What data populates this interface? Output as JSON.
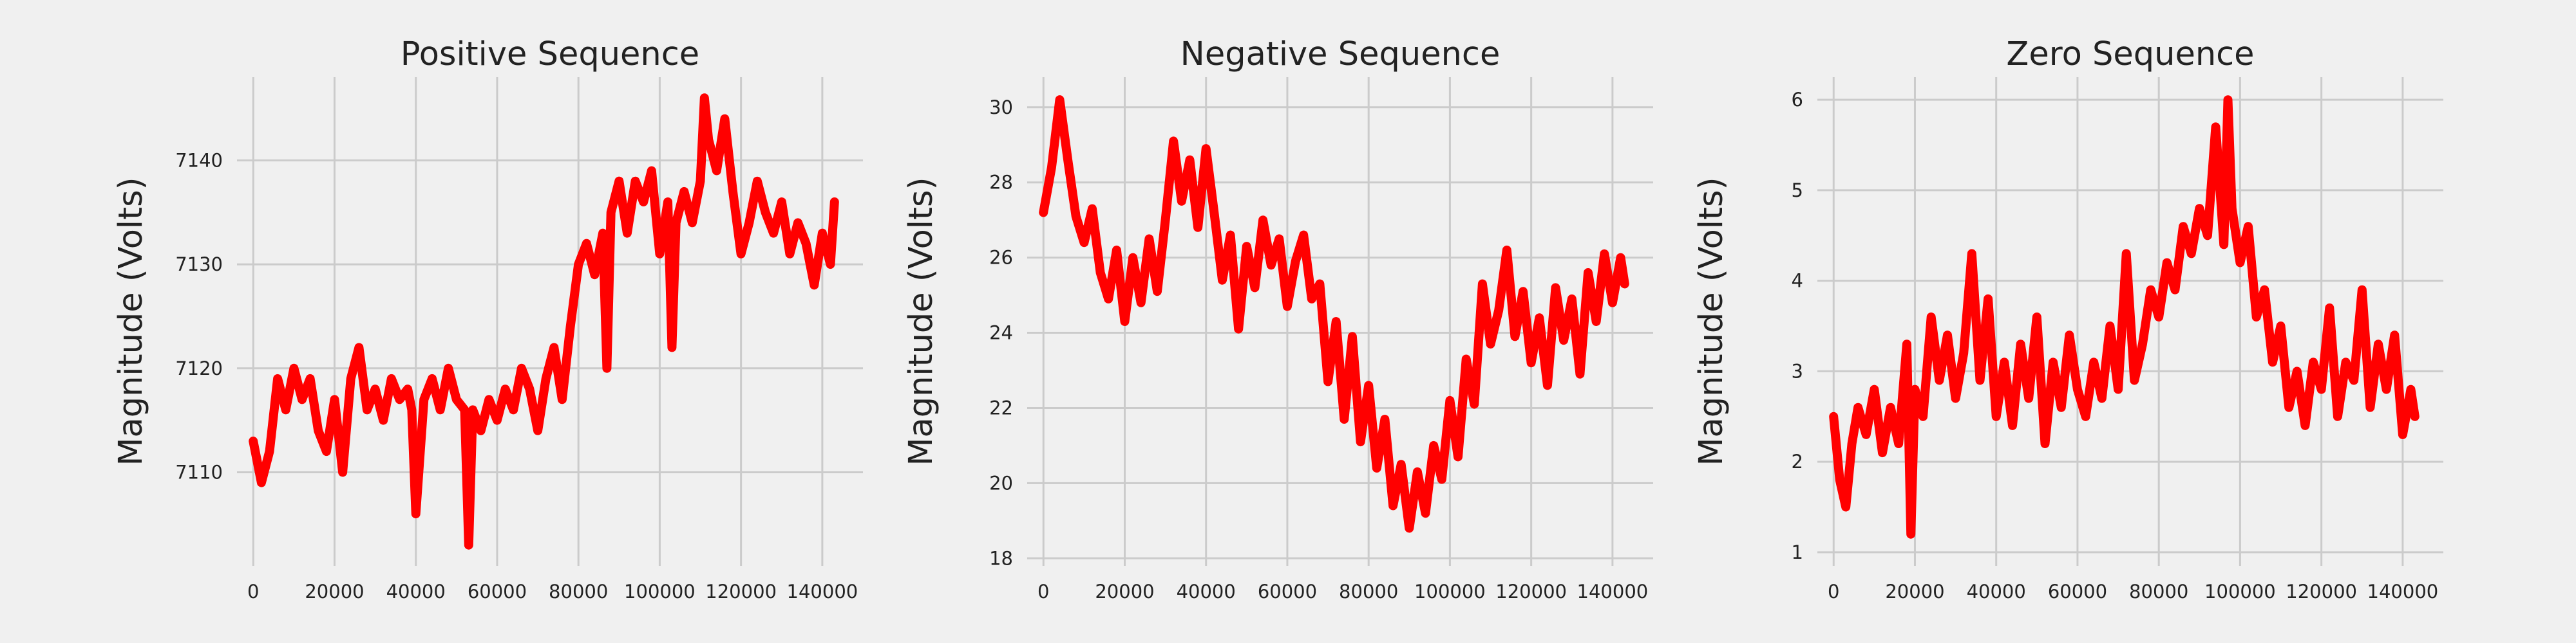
{
  "colors": {
    "background": "#f0f0f0",
    "grid": "#cbcbcb",
    "series": "#ff0000",
    "text": "#222222"
  },
  "chart_data": [
    {
      "type": "line",
      "title": "Positive Sequence",
      "xlabel": "",
      "ylabel": "Magnitude (Volts)",
      "xlim": [
        -4000,
        150000
      ],
      "ylim": [
        7101,
        7148
      ],
      "x_ticks": [
        0,
        20000,
        40000,
        60000,
        80000,
        100000,
        120000,
        140000
      ],
      "y_ticks": [
        7110,
        7120,
        7130,
        7140
      ],
      "grid": true,
      "legend": "none",
      "series": [
        {
          "x": [
            0,
            2000,
            4000,
            6000,
            8000,
            10000,
            12000,
            14000,
            16000,
            18000,
            20000,
            22000,
            24000,
            26000,
            28000,
            30000,
            32000,
            34000,
            36000,
            38000,
            39000,
            40000,
            42000,
            44000,
            46000,
            48000,
            50000,
            52000,
            53000,
            54000,
            56000,
            58000,
            60000,
            62000,
            64000,
            66000,
            68000,
            70000,
            72000,
            74000,
            76000,
            78000,
            80000,
            82000,
            84000,
            86000,
            87000,
            88000,
            90000,
            92000,
            94000,
            96000,
            98000,
            100000,
            102000,
            103000,
            104000,
            106000,
            108000,
            110000,
            111000,
            112000,
            114000,
            116000,
            118000,
            120000,
            122000,
            124000,
            126000,
            128000,
            130000,
            132000,
            134000,
            136000,
            138000,
            140000,
            142000,
            143000
          ],
          "y": [
            7113,
            7109,
            7112,
            7119,
            7116,
            7120,
            7117,
            7119,
            7114,
            7112,
            7117,
            7110,
            7119,
            7122,
            7116,
            7118,
            7115,
            7119,
            7117,
            7118,
            7116,
            7106,
            7117,
            7119,
            7116,
            7120,
            7117,
            7116,
            7103,
            7116,
            7114,
            7117,
            7115,
            7118,
            7116,
            7120,
            7118,
            7114,
            7119,
            7122,
            7117,
            7124,
            7130,
            7132,
            7129,
            7133,
            7120,
            7135,
            7138,
            7133,
            7138,
            7136,
            7139,
            7131,
            7136,
            7122,
            7134,
            7137,
            7134,
            7138,
            7146,
            7142,
            7139,
            7144,
            7137,
            7131,
            7134,
            7138,
            7135,
            7133,
            7136,
            7131,
            7134,
            7132,
            7128,
            7133,
            7130,
            7136
          ],
          "color": "#ff0000"
        }
      ]
    },
    {
      "type": "line",
      "title": "Negative Sequence",
      "xlabel": "",
      "ylabel": "Magnitude (Volts)",
      "xlim": [
        -4000,
        150000
      ],
      "ylim": [
        17.8,
        30.8
      ],
      "x_ticks": [
        0,
        20000,
        40000,
        60000,
        80000,
        100000,
        120000,
        140000
      ],
      "y_ticks": [
        18,
        20,
        22,
        24,
        26,
        28,
        30
      ],
      "grid": true,
      "legend": "none",
      "series": [
        {
          "x": [
            0,
            2000,
            4000,
            6000,
            8000,
            10000,
            12000,
            14000,
            16000,
            18000,
            20000,
            22000,
            24000,
            26000,
            28000,
            30000,
            32000,
            34000,
            36000,
            38000,
            40000,
            42000,
            44000,
            46000,
            48000,
            50000,
            52000,
            54000,
            56000,
            58000,
            60000,
            62000,
            64000,
            66000,
            68000,
            70000,
            72000,
            74000,
            76000,
            78000,
            80000,
            82000,
            84000,
            86000,
            88000,
            90000,
            92000,
            94000,
            96000,
            98000,
            100000,
            102000,
            104000,
            106000,
            108000,
            110000,
            112000,
            114000,
            116000,
            118000,
            120000,
            122000,
            124000,
            126000,
            128000,
            130000,
            132000,
            134000,
            136000,
            138000,
            140000,
            142000,
            143000
          ],
          "y": [
            27.2,
            28.4,
            30.2,
            28.6,
            27.1,
            26.4,
            27.3,
            25.6,
            24.9,
            26.2,
            24.3,
            26.0,
            24.8,
            26.5,
            25.1,
            27.0,
            29.1,
            27.5,
            28.6,
            26.8,
            28.9,
            27.2,
            25.4,
            26.6,
            24.1,
            26.3,
            25.2,
            27.0,
            25.8,
            26.5,
            24.7,
            25.9,
            26.6,
            24.9,
            25.3,
            22.7,
            24.3,
            21.7,
            23.9,
            21.1,
            22.6,
            20.4,
            21.7,
            19.4,
            20.5,
            18.8,
            20.3,
            19.2,
            21.0,
            20.1,
            22.2,
            20.7,
            23.3,
            22.1,
            25.3,
            23.7,
            24.6,
            26.2,
            23.9,
            25.1,
            23.2,
            24.4,
            22.6,
            25.2,
            23.8,
            24.9,
            22.9,
            25.6,
            24.3,
            26.1,
            24.8,
            26.0,
            25.3
          ],
          "color": "#ff0000"
        }
      ]
    },
    {
      "type": "line",
      "title": "Zero Sequence",
      "xlabel": "",
      "ylabel": "Magnitude (Volts)",
      "xlim": [
        -4000,
        150000
      ],
      "ylim": [
        0.85,
        6.25
      ],
      "x_ticks": [
        0,
        20000,
        40000,
        60000,
        80000,
        100000,
        120000,
        140000
      ],
      "y_ticks": [
        1,
        2,
        3,
        4,
        5,
        6
      ],
      "grid": true,
      "legend": "none",
      "series": [
        {
          "x": [
            0,
            1500,
            3000,
            4500,
            6000,
            8000,
            10000,
            12000,
            14000,
            16000,
            18000,
            19000,
            20000,
            22000,
            24000,
            26000,
            28000,
            30000,
            32000,
            34000,
            36000,
            38000,
            40000,
            42000,
            44000,
            46000,
            48000,
            50000,
            52000,
            54000,
            56000,
            58000,
            60000,
            62000,
            64000,
            66000,
            68000,
            70000,
            72000,
            74000,
            76000,
            78000,
            80000,
            82000,
            84000,
            86000,
            88000,
            90000,
            92000,
            94000,
            96000,
            97000,
            98000,
            100000,
            102000,
            104000,
            106000,
            108000,
            110000,
            112000,
            114000,
            116000,
            118000,
            120000,
            122000,
            124000,
            126000,
            128000,
            130000,
            132000,
            134000,
            136000,
            138000,
            140000,
            142000,
            143000
          ],
          "y": [
            2.5,
            1.8,
            1.5,
            2.2,
            2.6,
            2.3,
            2.8,
            2.1,
            2.6,
            2.2,
            3.3,
            1.2,
            2.8,
            2.5,
            3.6,
            2.9,
            3.4,
            2.7,
            3.2,
            4.3,
            2.9,
            3.8,
            2.5,
            3.1,
            2.4,
            3.3,
            2.7,
            3.6,
            2.2,
            3.1,
            2.6,
            3.4,
            2.8,
            2.5,
            3.1,
            2.7,
            3.5,
            2.8,
            4.3,
            2.9,
            3.3,
            3.9,
            3.6,
            4.2,
            3.9,
            4.6,
            4.3,
            4.8,
            4.5,
            5.7,
            4.4,
            6.0,
            4.8,
            4.2,
            4.6,
            3.6,
            3.9,
            3.1,
            3.5,
            2.6,
            3.0,
            2.4,
            3.1,
            2.8,
            3.7,
            2.5,
            3.1,
            2.9,
            3.9,
            2.6,
            3.3,
            2.8,
            3.4,
            2.3,
            2.8,
            2.5
          ],
          "color": "#ff0000"
        }
      ]
    }
  ]
}
